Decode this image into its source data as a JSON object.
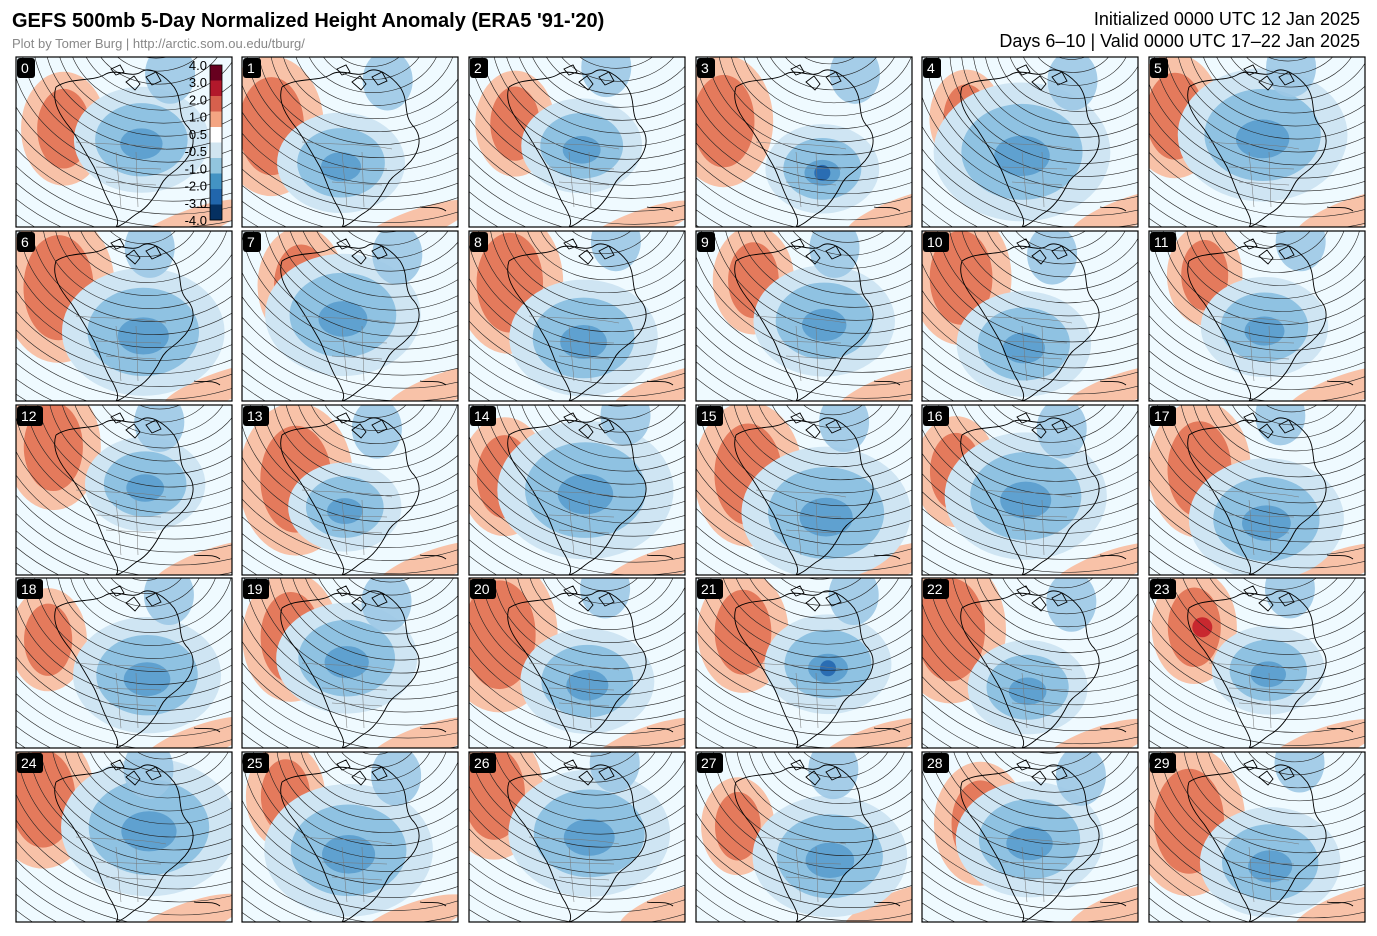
{
  "header": {
    "title": "GEFS 500mb 5-Day Normalized Height Anomaly (ERA5 '91-'20)",
    "credit": "Plot by Tomer Burg | http://arctic.som.ou.edu/tburg/",
    "initialized": "Initialized 0000 UTC 12 Jan 2025",
    "valid": "Days 6–10 | Valid 0000 UTC 17–22 Jan 2025"
  },
  "colorbar": {
    "labels": [
      "4.0",
      "3.0",
      "2.0",
      "1.0",
      "0.5",
      "-0.5",
      "-1.0",
      "-2.0",
      "-3.0",
      "-4.0"
    ]
  },
  "panels": [
    "0",
    "1",
    "2",
    "3",
    "4",
    "5",
    "6",
    "7",
    "8",
    "9",
    "10",
    "11",
    "12",
    "13",
    "14",
    "15",
    "16",
    "17",
    "18",
    "19",
    "20",
    "21",
    "22",
    "23",
    "24",
    "25",
    "26",
    "27",
    "28",
    "29"
  ]
}
